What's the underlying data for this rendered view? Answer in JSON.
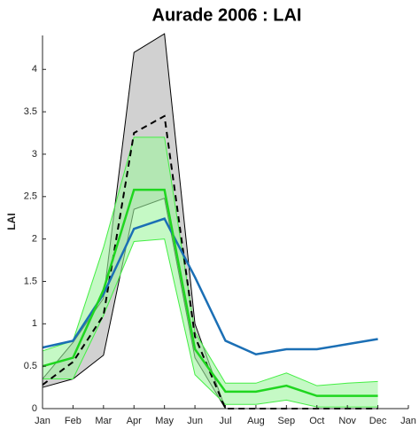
{
  "chart_data": {
    "type": "line",
    "title": "Aurade 2006  : LAI",
    "y_label": "LAI",
    "categories": [
      "Jan",
      "Feb",
      "Mar",
      "Apr",
      "May",
      "Jun",
      "Jul",
      "Aug",
      "Sep",
      "Oct",
      "Nov",
      "Dec",
      "Jan"
    ],
    "ylim": [
      0,
      4.4
    ],
    "yticks": [
      0,
      0.5,
      1,
      1.5,
      2,
      2.5,
      3,
      3.5,
      4
    ],
    "bands": [
      {
        "color": "#cccccc",
        "edge_color": "#000000",
        "upper": [
          0.35,
          0.78,
          1.3,
          4.2,
          4.42,
          1.0,
          0,
          null,
          null,
          null,
          null,
          null,
          null
        ],
        "lower": [
          0.25,
          0.35,
          0.63,
          2.35,
          2.48,
          0.6,
          0,
          null,
          null,
          null,
          null,
          null,
          null
        ]
      },
      {
        "color": "#9ff59f",
        "edge_color": "#44ee44",
        "upper": [
          0.68,
          0.8,
          1.9,
          3.2,
          3.2,
          0.9,
          0.3,
          0.3,
          0.42,
          0.27,
          0.3,
          0.32,
          null
        ],
        "lower": [
          0.35,
          0.35,
          1.1,
          1.97,
          2.0,
          0.4,
          0.05,
          0.05,
          0.1,
          0.02,
          0.02,
          0.02,
          null
        ]
      }
    ],
    "series": [
      {
        "color": "#000000",
        "dashed": true,
        "values": [
          0.28,
          0.55,
          1.1,
          3.25,
          3.45,
          0.85,
          0,
          0,
          0,
          0,
          0,
          0,
          null
        ]
      },
      {
        "color": "#1b6fb5",
        "dashed": false,
        "values": [
          0.72,
          0.8,
          1.35,
          2.12,
          2.24,
          1.55,
          0.8,
          0.64,
          0.7,
          0.7,
          0.76,
          0.82,
          null
        ]
      },
      {
        "color": "#1fd61f",
        "dashed": false,
        "values": [
          0.5,
          0.6,
          1.4,
          2.58,
          2.58,
          0.7,
          0.2,
          0.2,
          0.27,
          0.15,
          0.15,
          0.15,
          null
        ]
      }
    ]
  }
}
